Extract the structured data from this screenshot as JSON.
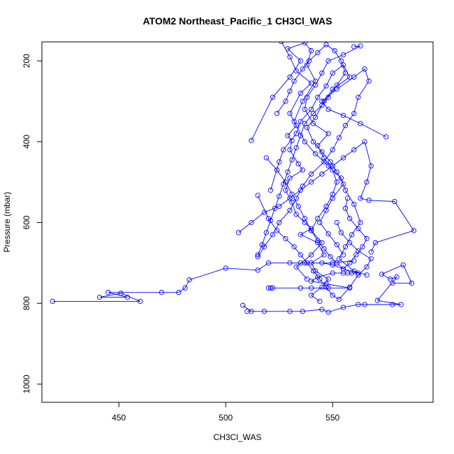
{
  "chart_data": {
    "type": "line",
    "title": "ATOM2 Northeast_Pacific_1 CH3Cl_WAS",
    "xlabel": "CH3Cl_WAS",
    "ylabel": "Pressure (mbar)",
    "xlim": [
      414,
      597
    ],
    "ylim": [
      1045,
      153
    ],
    "y_inverted": true,
    "x_ticks": [
      450,
      500,
      550
    ],
    "y_ticks": [
      200,
      400,
      600,
      800,
      1000
    ],
    "grid": false,
    "legend": "none",
    "color": "#0000ff",
    "marker": "open-circle",
    "series": [
      {
        "points": [
          [
            419,
            795
          ],
          [
            460,
            795
          ],
          [
            451,
            775
          ],
          [
            441,
            785
          ],
          [
            454,
            785
          ],
          [
            445,
            773
          ],
          [
            470,
            773
          ],
          [
            478,
            773
          ],
          [
            481,
            762
          ],
          [
            483,
            742
          ],
          [
            500,
            713
          ],
          [
            515,
            718
          ],
          [
            520,
            700
          ],
          [
            535,
            700
          ],
          [
            550,
            700
          ],
          [
            560,
            695
          ]
        ]
      },
      {
        "points": [
          [
            508,
            805
          ],
          [
            512,
            820
          ],
          [
            510,
            820
          ],
          [
            518,
            820
          ],
          [
            530,
            820
          ],
          [
            536,
            820
          ],
          [
            545,
            815
          ],
          [
            548,
            822
          ],
          [
            555,
            810
          ],
          [
            562,
            803
          ],
          [
            565,
            803
          ],
          [
            578,
            803
          ],
          [
            582,
            803
          ],
          [
            571,
            793
          ],
          [
            580,
            735
          ],
          [
            577,
            740
          ],
          [
            573,
            728
          ],
          [
            583,
            705
          ],
          [
            587,
            750
          ],
          [
            578,
            750
          ]
        ]
      },
      {
        "points": [
          [
            520,
            762
          ],
          [
            521,
            762
          ],
          [
            522,
            762
          ],
          [
            535,
            762
          ],
          [
            540,
            762
          ],
          [
            548,
            762
          ],
          [
            558,
            762
          ],
          [
            547,
            752
          ],
          [
            540,
            745
          ],
          [
            543,
            735
          ],
          [
            550,
            725
          ],
          [
            555,
            725
          ],
          [
            557,
            725
          ],
          [
            559,
            725
          ],
          [
            562,
            725
          ],
          [
            555,
            715
          ],
          [
            550,
            705
          ],
          [
            545,
            700
          ],
          [
            537,
            700
          ],
          [
            530,
            700
          ]
        ]
      },
      {
        "points": [
          [
            526,
            152
          ],
          [
            530,
            190
          ],
          [
            533,
            225
          ],
          [
            540,
            255
          ],
          [
            535,
            280
          ],
          [
            530,
            330
          ],
          [
            533,
            360
          ],
          [
            529,
            385
          ],
          [
            531,
            398
          ],
          [
            530,
            420
          ],
          [
            534,
            455
          ],
          [
            536,
            470
          ],
          [
            530,
            490
          ],
          [
            528,
            520
          ],
          [
            531,
            550
          ],
          [
            533,
            580
          ],
          [
            537,
            600
          ],
          [
            540,
            615
          ],
          [
            535,
            630
          ],
          [
            543,
            650
          ],
          [
            546,
            680
          ],
          [
            540,
            700
          ],
          [
            542,
            720
          ],
          [
            548,
            740
          ],
          [
            545,
            760
          ],
          [
            540,
            780
          ],
          [
            544,
            795
          ]
        ]
      },
      {
        "points": [
          [
            560,
            165
          ],
          [
            563,
            163
          ],
          [
            555,
            185
          ],
          [
            548,
            200
          ],
          [
            545,
            230
          ],
          [
            542,
            260
          ],
          [
            538,
            290
          ],
          [
            537,
            320
          ],
          [
            541,
            355
          ],
          [
            548,
            380
          ],
          [
            543,
            410
          ],
          [
            546,
            440
          ],
          [
            550,
            470
          ],
          [
            552,
            500
          ],
          [
            550,
            530
          ],
          [
            547,
            560
          ],
          [
            543,
            590
          ],
          [
            540,
            620
          ],
          [
            545,
            650
          ],
          [
            540,
            680
          ],
          [
            533,
            710
          ],
          [
            538,
            740
          ]
        ]
      },
      {
        "points": [
          [
            512,
            397
          ],
          [
            522,
            290
          ],
          [
            530,
            240
          ],
          [
            535,
            200
          ],
          [
            529,
            170
          ],
          [
            537,
            155
          ],
          [
            540,
            175
          ],
          [
            538,
            210
          ],
          [
            542,
            250
          ],
          [
            536,
            300
          ],
          [
            532,
            350
          ],
          [
            537,
            400
          ],
          [
            542,
            430
          ],
          [
            548,
            460
          ],
          [
            554,
            490
          ],
          [
            556,
            520
          ],
          [
            560,
            555
          ],
          [
            563,
            600
          ],
          [
            559,
            630
          ],
          [
            556,
            660
          ],
          [
            553,
            690
          ],
          [
            560,
            720
          ],
          [
            566,
            730
          ]
        ]
      },
      {
        "points": [
          [
            521,
            520
          ],
          [
            525,
            450
          ],
          [
            527,
            420
          ],
          [
            533,
            380
          ],
          [
            535,
            350
          ],
          [
            540,
            320
          ],
          [
            543,
            290
          ],
          [
            547,
            262
          ],
          [
            550,
            230
          ],
          [
            555,
            210
          ],
          [
            558,
            240
          ],
          [
            550,
            270
          ],
          [
            546,
            300
          ],
          [
            542,
            340
          ],
          [
            538,
            365
          ],
          [
            541,
            400
          ],
          [
            545,
            425
          ],
          [
            549,
            450
          ],
          [
            552,
            475
          ],
          [
            555,
            505
          ],
          [
            550,
            540
          ],
          [
            547,
            570
          ],
          [
            544,
            600
          ],
          [
            548,
            628
          ],
          [
            552,
            655
          ],
          [
            555,
            680
          ]
        ]
      },
      {
        "points": [
          [
            575,
            388
          ],
          [
            563,
            355
          ],
          [
            555,
            335
          ],
          [
            548,
            320
          ],
          [
            545,
            300
          ],
          [
            552,
            270
          ],
          [
            560,
            240
          ],
          [
            565,
            220
          ],
          [
            567,
            250
          ],
          [
            562,
            290
          ],
          [
            560,
            330
          ],
          [
            556,
            360
          ],
          [
            553,
            390
          ],
          [
            550,
            420
          ],
          [
            546,
            450
          ],
          [
            540,
            480
          ],
          [
            536,
            510
          ],
          [
            533,
            540
          ],
          [
            530,
            570
          ],
          [
            525,
            600
          ],
          [
            522,
            630
          ],
          [
            518,
            660
          ],
          [
            515,
            685
          ]
        ]
      },
      {
        "points": [
          [
            506,
            625
          ],
          [
            512,
            600
          ],
          [
            518,
            575
          ],
          [
            525,
            560
          ],
          [
            530,
            540
          ],
          [
            535,
            520
          ],
          [
            540,
            500
          ],
          [
            545,
            480
          ],
          [
            550,
            460
          ],
          [
            555,
            440
          ],
          [
            560,
            420
          ],
          [
            565,
            400
          ],
          [
            568,
            460
          ],
          [
            566,
            500
          ],
          [
            563,
            540
          ],
          [
            567,
            545
          ],
          [
            579,
            548
          ],
          [
            588,
            620
          ],
          [
            570,
            650
          ],
          [
            568,
            673
          ]
        ]
      },
      {
        "points": [
          [
            515,
            533
          ],
          [
            520,
            590
          ],
          [
            524,
            620
          ],
          [
            528,
            640
          ],
          [
            532,
            660
          ],
          [
            535,
            680
          ],
          [
            538,
            700
          ],
          [
            541,
            720
          ],
          [
            544,
            740
          ],
          [
            547,
            760
          ],
          [
            550,
            780
          ],
          [
            553,
            790
          ],
          [
            558,
            760
          ],
          [
            562,
            730
          ],
          [
            566,
            710
          ],
          [
            568,
            690
          ],
          [
            562,
            670
          ],
          [
            558,
            650
          ],
          [
            554,
            625
          ],
          [
            552,
            600
          ]
        ]
      },
      {
        "points": [
          [
            524,
            330
          ],
          [
            528,
            300
          ],
          [
            530,
            275
          ],
          [
            532,
            250
          ],
          [
            536,
            220
          ],
          [
            539,
            200
          ],
          [
            543,
            180
          ],
          [
            547,
            160
          ],
          [
            551,
            175
          ],
          [
            554,
            200
          ],
          [
            556,
            230
          ],
          [
            552,
            260
          ],
          [
            548,
            290
          ],
          [
            545,
            310
          ],
          [
            541,
            330
          ],
          [
            537,
            355
          ],
          [
            535,
            385
          ],
          [
            533,
            415
          ],
          [
            531,
            445
          ],
          [
            529,
            475
          ],
          [
            527,
            505
          ],
          [
            525,
            535
          ],
          [
            523,
            565
          ],
          [
            521,
            595
          ],
          [
            519,
            625
          ],
          [
            517,
            655
          ],
          [
            515,
            680
          ]
        ]
      },
      {
        "points": [
          [
            519,
            440
          ],
          [
            524,
            470
          ],
          [
            528,
            500
          ],
          [
            531,
            530
          ],
          [
            534,
            560
          ],
          [
            537,
            590
          ],
          [
            540,
            620
          ],
          [
            543,
            645
          ],
          [
            546,
            665
          ],
          [
            549,
            685
          ],
          [
            552,
            700
          ],
          [
            555,
            715
          ],
          [
            558,
            700
          ],
          [
            561,
            680
          ],
          [
            564,
            660
          ],
          [
            566,
            640
          ],
          [
            562,
            615
          ],
          [
            558,
            590
          ],
          [
            556,
            565
          ],
          [
            557,
            540
          ]
        ]
      }
    ]
  }
}
